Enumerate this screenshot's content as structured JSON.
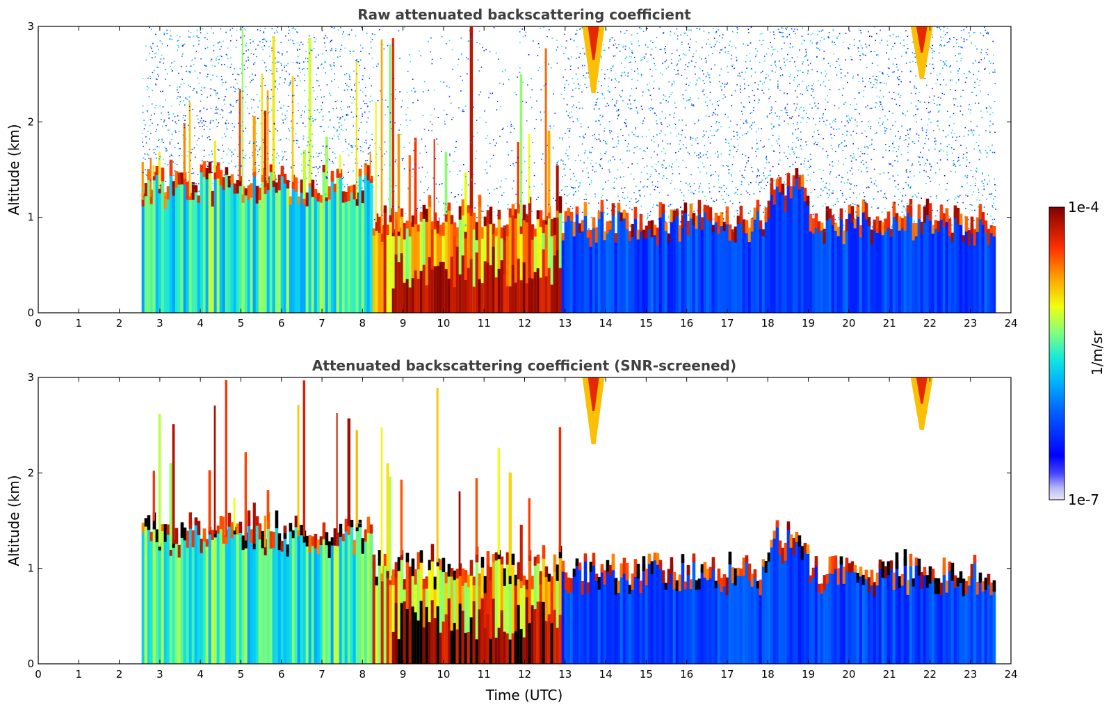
{
  "chart_data": [
    {
      "type": "heatmap",
      "title": "Raw attenuated backscattering coefficient",
      "xlabel": "",
      "ylabel": "Altitude (km)",
      "xlim": [
        0,
        24
      ],
      "ylim": [
        0,
        3
      ],
      "xticks": [
        "0",
        "1",
        "2",
        "3",
        "4",
        "5",
        "6",
        "7",
        "8",
        "9",
        "10",
        "11",
        "12",
        "13",
        "14",
        "15",
        "16",
        "17",
        "18",
        "19",
        "20",
        "21",
        "22",
        "23",
        "24"
      ],
      "yticks": [
        "0",
        "1",
        "2",
        "3"
      ],
      "data_extent_hours": [
        2.55,
        23.6
      ],
      "segments": [
        {
          "start": 2.55,
          "end": 8.2,
          "boundary_layer_top_km": 1.35,
          "pattern": "dense vertical plumes, yellow/red streaks reaching 3 km"
        },
        {
          "start": 8.2,
          "end": 12.9,
          "boundary_layer_top_km": 1.0,
          "pattern": "strong red near-surface backscatter, sparse noise above"
        },
        {
          "start": 12.9,
          "end": 23.6,
          "boundary_layer_top_km": 0.95,
          "pattern": "blue boundary layer with red top layer, blue noise above"
        }
      ],
      "cloud_features": [
        {
          "time_center": 13.7,
          "base_km": 2.3,
          "top_km": 3.0
        },
        {
          "time_center": 21.8,
          "base_km": 2.45,
          "top_km": 3.0
        }
      ]
    },
    {
      "type": "heatmap",
      "title": "Attenuated backscattering coefficient (SNR-screened)",
      "xlabel": "Time (UTC)",
      "ylabel": "Altitude (km)",
      "xlim": [
        0,
        24
      ],
      "ylim": [
        0,
        3
      ],
      "xticks": [
        "0",
        "1",
        "2",
        "3",
        "4",
        "5",
        "6",
        "7",
        "8",
        "9",
        "10",
        "11",
        "12",
        "13",
        "14",
        "15",
        "16",
        "17",
        "18",
        "19",
        "20",
        "21",
        "22",
        "23",
        "24"
      ],
      "yticks": [
        "0",
        "1",
        "2",
        "3"
      ],
      "data_extent_hours": [
        2.55,
        23.6
      ],
      "screened": true
    }
  ],
  "colorbar": {
    "label": "1/m/sr",
    "max_label": "1e-4",
    "min_label": "1e-7",
    "scale": "log",
    "colormap": "jet"
  }
}
